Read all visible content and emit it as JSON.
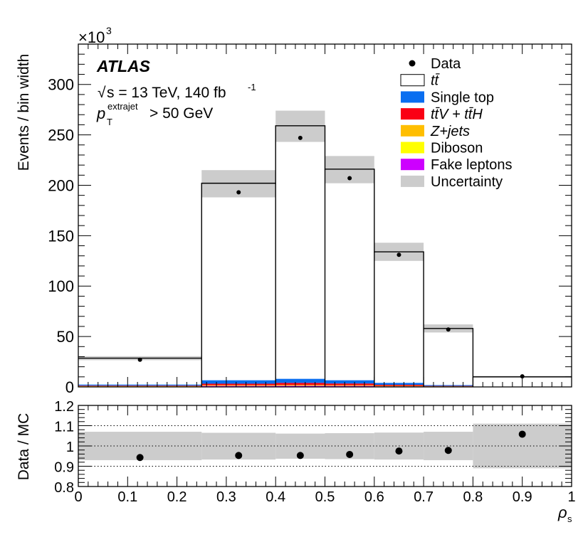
{
  "chart_data": {
    "type": "bar",
    "xlabel": "ρ",
    "xlabel_sub": "s",
    "ylabel": "Events / bin width",
    "y_multiplier_base": "×10",
    "y_multiplier_exp": "3",
    "ratio_ylabel": "Data / MC",
    "xlim": [
      0,
      1
    ],
    "ylim": [
      0,
      340
    ],
    "ratio_ylim": [
      0.8,
      1.2
    ],
    "x_ticks": [
      "0",
      "0.1",
      "0.2",
      "0.3",
      "0.4",
      "0.5",
      "0.6",
      "0.7",
      "0.8",
      "0.9",
      "1"
    ],
    "y_ticks": [
      "0",
      "50",
      "100",
      "150",
      "200",
      "250",
      "300"
    ],
    "ratio_ticks": [
      "0.8",
      "0.9",
      "1",
      "1.1",
      "1.2"
    ],
    "atlas_label": "ATLAS",
    "energy_text_root": "√",
    "energy_text_main": "s = 13 TeV, 140 fb",
    "energy_text_exp": "-1",
    "cut_p": "p",
    "cut_sub": "T",
    "cut_sup": "extrajet",
    "cut_rest": "> 50 GeV",
    "legend": [
      {
        "key": "data",
        "label": "Data",
        "color": "#000000"
      },
      {
        "key": "ttbar",
        "label": "tt̄",
        "color": "#ffffff"
      },
      {
        "key": "singletop",
        "label": "Single top",
        "color": "#0a6ef0"
      },
      {
        "key": "ttv",
        "label": "tt̄V + tt̄H",
        "color": "#fa0014"
      },
      {
        "key": "zjets",
        "label": "Z+jets",
        "color": "#ffbe00"
      },
      {
        "key": "diboson",
        "label": "Diboson",
        "color": "#ffff00"
      },
      {
        "key": "fake",
        "label": "Fake leptons",
        "color": "#cd00ff"
      },
      {
        "key": "unc",
        "label": "Uncertainty",
        "color": "#cccccc"
      }
    ],
    "bins": [
      {
        "lo": 0.0,
        "hi": 0.25,
        "total": 28.5,
        "unc_lo": 26.5,
        "unc_hi": 30.5,
        "fake": 0.3,
        "diboson": 0.1,
        "zjets": 0.4,
        "ttv": 0.5,
        "singletop": 1.0
      },
      {
        "lo": 0.25,
        "hi": 0.4,
        "total": 202,
        "unc_lo": 188,
        "unc_hi": 215,
        "fake": 1.0,
        "diboson": 0.2,
        "zjets": 0.6,
        "ttv": 1.4,
        "singletop": 3.4
      },
      {
        "lo": 0.4,
        "hi": 0.5,
        "total": 259,
        "unc_lo": 243,
        "unc_hi": 274,
        "fake": 1.2,
        "diboson": 0.2,
        "zjets": 0.7,
        "ttv": 1.9,
        "singletop": 4.0
      },
      {
        "lo": 0.5,
        "hi": 0.6,
        "total": 216,
        "unc_lo": 202,
        "unc_hi": 229,
        "fake": 1.0,
        "diboson": 0.2,
        "zjets": 0.6,
        "ttv": 1.6,
        "singletop": 3.2
      },
      {
        "lo": 0.6,
        "hi": 0.7,
        "total": 134,
        "unc_lo": 125,
        "unc_hi": 143,
        "fake": 0.6,
        "diboson": 0.1,
        "zjets": 0.4,
        "ttv": 1.0,
        "singletop": 1.9
      },
      {
        "lo": 0.7,
        "hi": 0.8,
        "total": 58,
        "unc_lo": 54,
        "unc_hi": 62,
        "fake": 0.3,
        "diboson": 0.1,
        "zjets": 0.2,
        "ttv": 0.4,
        "singletop": 0.8
      },
      {
        "lo": 0.8,
        "hi": 1.0,
        "total": 10,
        "unc_lo": 9.2,
        "unc_hi": 10.9,
        "fake": 0.05,
        "diboson": 0.02,
        "zjets": 0.05,
        "ttv": 0.08,
        "singletop": 0.15
      }
    ],
    "data_points": [
      {
        "x": 0.125,
        "y": 27
      },
      {
        "x": 0.325,
        "y": 193
      },
      {
        "x": 0.45,
        "y": 247
      },
      {
        "x": 0.55,
        "y": 207
      },
      {
        "x": 0.65,
        "y": 131
      },
      {
        "x": 0.75,
        "y": 57
      },
      {
        "x": 0.9,
        "y": 10.5
      }
    ],
    "ratio_points": [
      {
        "x": 0.125,
        "y": 0.943
      },
      {
        "x": 0.325,
        "y": 0.953
      },
      {
        "x": 0.45,
        "y": 0.953
      },
      {
        "x": 0.55,
        "y": 0.958
      },
      {
        "x": 0.65,
        "y": 0.975
      },
      {
        "x": 0.75,
        "y": 0.978
      },
      {
        "x": 0.9,
        "y": 1.058
      }
    ],
    "ratio_band": [
      {
        "lo": 0.0,
        "hi": 0.25,
        "band_lo": 0.93,
        "band_hi": 1.07
      },
      {
        "lo": 0.25,
        "hi": 0.4,
        "band_lo": 0.933,
        "band_hi": 1.065
      },
      {
        "lo": 0.4,
        "hi": 0.5,
        "band_lo": 0.937,
        "band_hi": 1.061
      },
      {
        "lo": 0.5,
        "hi": 0.6,
        "band_lo": 0.935,
        "band_hi": 1.063
      },
      {
        "lo": 0.6,
        "hi": 0.7,
        "band_lo": 0.933,
        "band_hi": 1.066
      },
      {
        "lo": 0.7,
        "hi": 0.8,
        "band_lo": 0.93,
        "band_hi": 1.07
      },
      {
        "lo": 0.8,
        "hi": 1.0,
        "band_lo": 0.89,
        "band_hi": 1.11
      }
    ],
    "ratio_dotted_lines": [
      0.9,
      1.0,
      1.1
    ]
  }
}
